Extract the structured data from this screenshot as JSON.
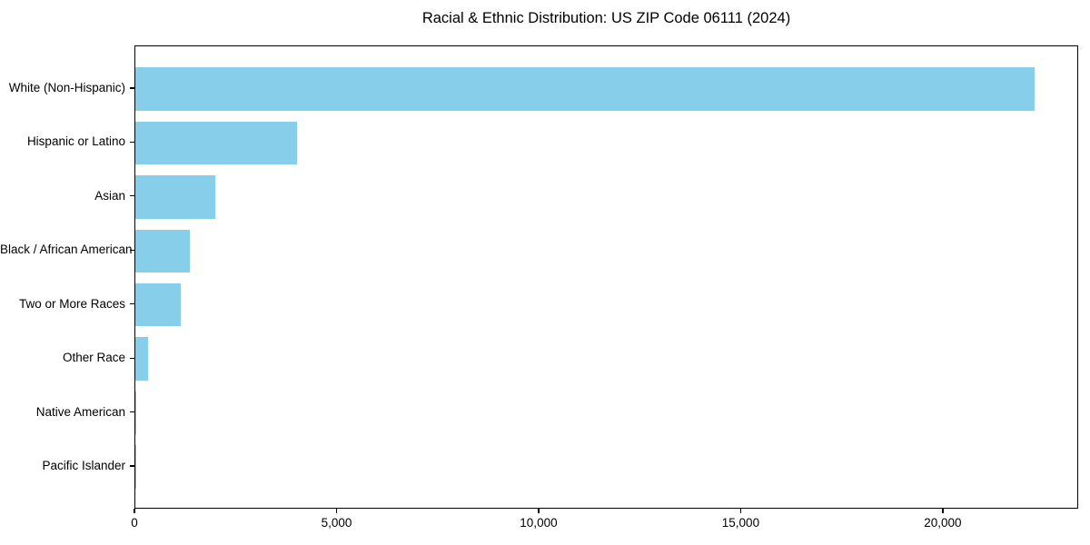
{
  "title": "Racial & Ethnic Distribution: US ZIP Code 06111 (2024)",
  "chart_data": {
    "type": "bar",
    "orientation": "horizontal",
    "title": "Racial & Ethnic Distribution: US ZIP Code 06111 (2024)",
    "categories": [
      "White (Non-Hispanic)",
      "Hispanic or Latino",
      "Asian",
      "Black / African American",
      "Two or More Races",
      "Other Race",
      "Native American",
      "Pacific Islander"
    ],
    "values": [
      22240,
      4000,
      1980,
      1350,
      1120,
      310,
      30,
      10
    ],
    "xlabel": "",
    "ylabel": "",
    "xlim": [
      0,
      23350
    ],
    "xticks": [
      0,
      5000,
      10000,
      15000,
      20000
    ],
    "xtick_labels": [
      "0",
      "5,000",
      "10,000",
      "15,000",
      "20,000"
    ],
    "bar_color": "#87CEEB",
    "grid": false,
    "legend": null,
    "background_color": "#ffffff",
    "spine_color": "#000000"
  }
}
